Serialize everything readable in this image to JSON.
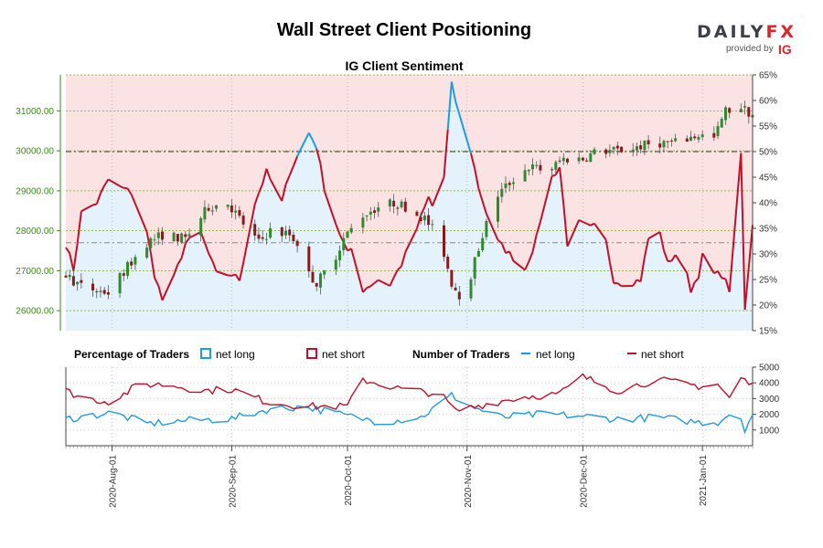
{
  "header": {
    "title": "Wall Street Client Positioning",
    "subtitle": "IG Client Sentiment",
    "logo_main": "DAILY",
    "logo_fx": "FX",
    "logo_provided": "provided by",
    "logo_ig": "IG"
  },
  "legend": {
    "pct_title": "Percentage of Traders",
    "pct_long": "net long",
    "pct_short": "net short",
    "num_title": "Number of Traders",
    "num_long": "net long",
    "num_short": "net short"
  },
  "colors": {
    "long": "#1f9be0",
    "short": "#c40f2a",
    "bull_candle": "#2e8b2e",
    "bear_candle": "#8b1a1a",
    "long_fill": "#e3f2fb",
    "short_fill": "#fbe3e3",
    "price_axis": "#3a8a1a",
    "grid": "#7aa33a"
  },
  "chart_data": [
    {
      "type": "candlestick",
      "title": "IG Client Sentiment",
      "series_name": "Wall Street",
      "price_axis": {
        "ylim": [
          25500,
          31900
        ],
        "ticks": [
          26000,
          27000,
          28000,
          29000,
          30000,
          31000
        ]
      },
      "percent_axis": {
        "ylim": [
          15,
          65
        ],
        "ticks": [
          15,
          20,
          25,
          30,
          35,
          40,
          45,
          50,
          55,
          60,
          65
        ]
      },
      "x_ticks": [
        "2020-Aug-01",
        "2020-Sep-01",
        "2020-Oct-01",
        "2020-Nov-01",
        "2020-Dec-01",
        "2021-Jan-01"
      ],
      "x_range": [
        "2020-Jul-20",
        "2021-Jan-14"
      ],
      "reference_line_percent": 50,
      "reference_line_price": 27700,
      "close_anchors": [
        [
          "2020-Jul-20",
          26900
        ],
        [
          "2020-Jul-24",
          26600
        ],
        [
          "2020-Jul-28",
          26500
        ],
        [
          "2020-Jul-31",
          26450
        ],
        [
          "2020-Aug-05",
          27100
        ],
        [
          "2020-Aug-10",
          27700
        ],
        [
          "2020-Aug-14",
          27900
        ],
        [
          "2020-Aug-20",
          27800
        ],
        [
          "2020-Aug-26",
          28600
        ],
        [
          "2020-Aug-31",
          28700
        ],
        [
          "2020-Sep-03",
          28300
        ],
        [
          "2020-Sep-08",
          27700
        ],
        [
          "2020-Sep-11",
          28000
        ],
        [
          "2020-Sep-16",
          27900
        ],
        [
          "2020-Sep-19",
          27600
        ],
        [
          "2020-Sep-21",
          26900
        ],
        [
          "2020-Sep-23",
          26700
        ],
        [
          "2020-Sep-27",
          27200
        ],
        [
          "2020-Sep-30",
          27800
        ],
        [
          "2020-Oct-05",
          28400
        ],
        [
          "2020-Oct-09",
          28600
        ],
        [
          "2020-Oct-13",
          28700
        ],
        [
          "2020-Oct-16",
          28600
        ],
        [
          "2020-Oct-21",
          28300
        ],
        [
          "2020-Oct-25",
          27800
        ],
        [
          "2020-Oct-28",
          26700
        ],
        [
          "2020-Oct-30",
          26400
        ],
        [
          "2020-Nov-02",
          26900
        ],
        [
          "2020-Nov-05",
          27900
        ],
        [
          "2020-Nov-09",
          28900
        ],
        [
          "2020-Nov-13",
          29300
        ],
        [
          "2020-Nov-17",
          29600
        ],
        [
          "2020-Nov-22",
          29500
        ],
        [
          "2020-Nov-26",
          29800
        ],
        [
          "2020-Dec-01",
          29800
        ],
        [
          "2020-Dec-05",
          30000
        ],
        [
          "2020-Dec-10",
          30000
        ],
        [
          "2020-Dec-15",
          30100
        ],
        [
          "2020-Dec-20",
          30200
        ],
        [
          "2020-Dec-25",
          30200
        ],
        [
          "2020-Dec-31",
          30400
        ],
        [
          "2021-Jan-04",
          30300
        ],
        [
          "2021-Jan-07",
          31000
        ],
        [
          "2021-Jan-11",
          31100
        ],
        [
          "2021-Jan-14",
          30900
        ]
      ],
      "net_long_pct_anchors": [
        [
          "2020-Jul-20",
          32
        ],
        [
          "2020-Jul-22",
          27
        ],
        [
          "2020-Jul-24",
          38
        ],
        [
          "2020-Jul-26",
          39
        ],
        [
          "2020-Jul-28",
          40
        ],
        [
          "2020-Aug-01",
          46
        ],
        [
          "2020-Aug-03",
          43
        ],
        [
          "2020-Aug-06",
          42
        ],
        [
          "2020-Aug-10",
          34
        ],
        [
          "2020-Aug-12",
          26
        ],
        [
          "2020-Aug-14",
          21
        ],
        [
          "2020-Aug-16",
          23
        ],
        [
          "2020-Aug-20",
          32
        ],
        [
          "2020-Aug-24",
          34
        ],
        [
          "2020-Aug-28",
          26
        ],
        [
          "2020-Sep-01",
          26
        ],
        [
          "2020-Sep-03",
          25
        ],
        [
          "2020-Sep-07",
          40
        ],
        [
          "2020-Sep-10",
          46
        ],
        [
          "2020-Sep-14",
          40
        ],
        [
          "2020-Sep-16",
          46
        ],
        [
          "2020-Sep-18",
          49
        ],
        [
          "2020-Sep-20",
          55
        ],
        [
          "2020-Sep-23",
          51
        ],
        [
          "2020-Sep-26",
          39
        ],
        [
          "2020-Sep-28",
          36
        ],
        [
          "2020-Oct-01",
          30
        ],
        [
          "2020-Oct-03",
          32
        ],
        [
          "2020-Oct-05",
          23
        ],
        [
          "2020-Oct-07",
          24
        ],
        [
          "2020-Oct-09",
          25
        ],
        [
          "2020-Oct-12",
          24
        ],
        [
          "2020-Oct-15",
          28
        ],
        [
          "2020-Oct-19",
          35
        ],
        [
          "2020-Oct-22",
          41
        ],
        [
          "2020-Oct-25",
          36
        ],
        [
          "2020-Oct-28",
          63
        ],
        [
          "2020-Oct-31",
          54
        ],
        [
          "2020-Nov-02",
          50
        ],
        [
          "2020-Nov-04",
          43
        ],
        [
          "2020-Nov-06",
          38
        ],
        [
          "2020-Nov-08",
          33
        ],
        [
          "2020-Nov-12",
          30
        ],
        [
          "2020-Nov-16",
          27
        ],
        [
          "2020-Nov-19",
          33
        ],
        [
          "2020-Nov-22",
          44
        ],
        [
          "2020-Nov-25",
          47
        ],
        [
          "2020-Nov-27",
          32
        ],
        [
          "2020-Nov-30",
          36
        ],
        [
          "2020-Dec-03",
          35
        ],
        [
          "2020-Dec-06",
          36
        ],
        [
          "2020-Dec-09",
          25
        ],
        [
          "2020-Dec-12",
          24
        ],
        [
          "2020-Dec-16",
          25
        ],
        [
          "2020-Dec-18",
          33
        ],
        [
          "2020-Dec-20",
          37
        ],
        [
          "2020-Dec-23",
          28
        ],
        [
          "2020-Dec-26",
          31
        ],
        [
          "2020-Dec-29",
          23
        ],
        [
          "2020-Dec-31",
          26
        ],
        [
          "2021-Jan-02",
          33
        ],
        [
          "2021-Jan-04",
          26
        ],
        [
          "2021-Jan-06",
          26
        ],
        [
          "2021-Jan-08",
          23
        ],
        [
          "2021-Jan-10",
          33
        ],
        [
          "2021-Jan-11",
          49
        ],
        [
          "2021-Jan-12",
          19
        ],
        [
          "2021-Jan-13",
          27
        ],
        [
          "2021-Jan-14",
          36
        ]
      ],
      "net_short_pct_note": "net short % = 100 - net long %"
    },
    {
      "type": "line",
      "title": "Number of Traders",
      "ylim": [
        0,
        5000
      ],
      "y_ticks": [
        1000,
        2000,
        3000,
        4000,
        5000
      ],
      "series": [
        {
          "name": "net long",
          "anchors": [
            [
              "2020-Jul-20",
              1700
            ],
            [
              "2020-Aug-01",
              2100
            ],
            [
              "2020-Aug-10",
              1400
            ],
            [
              "2020-Aug-20",
              1600
            ],
            [
              "2020-Sep-01",
              1700
            ],
            [
              "2020-Sep-10",
              2300
            ],
            [
              "2020-Sep-20",
              2500
            ],
            [
              "2020-Oct-01",
              1900
            ],
            [
              "2020-Oct-10",
              1500
            ],
            [
              "2020-Oct-20",
              1800
            ],
            [
              "2020-Oct-28",
              3200
            ],
            [
              "2020-Nov-02",
              2500
            ],
            [
              "2020-Nov-10",
              1800
            ],
            [
              "2020-Nov-20",
              2000
            ],
            [
              "2020-Nov-30",
              1900
            ],
            [
              "2020-Dec-10",
              1700
            ],
            [
              "2020-Dec-20",
              1800
            ],
            [
              "2020-Dec-31",
              1500
            ],
            [
              "2021-Jan-05",
              1500
            ],
            [
              "2021-Jan-10",
              2400
            ],
            [
              "2021-Jan-12",
              1100
            ],
            [
              "2021-Jan-14",
              2000
            ]
          ]
        },
        {
          "name": "net short",
          "anchors": [
            [
              "2020-Jul-20",
              3500
            ],
            [
              "2020-Jul-25",
              3000
            ],
            [
              "2020-Aug-01",
              2800
            ],
            [
              "2020-Aug-08",
              3900
            ],
            [
              "2020-Aug-15",
              3900
            ],
            [
              "2020-Aug-25",
              3500
            ],
            [
              "2020-Sep-01",
              3600
            ],
            [
              "2020-Sep-10",
              2800
            ],
            [
              "2020-Sep-20",
              2500
            ],
            [
              "2020-Oct-01",
              2500
            ],
            [
              "2020-Oct-05",
              4200
            ],
            [
              "2020-Oct-15",
              3600
            ],
            [
              "2020-Oct-25",
              3300
            ],
            [
              "2020-Oct-29",
              2200
            ],
            [
              "2020-Nov-05",
              2600
            ],
            [
              "2020-Nov-15",
              3100
            ],
            [
              "2020-Nov-25",
              3300
            ],
            [
              "2020-Dec-01",
              4400
            ],
            [
              "2020-Dec-10",
              3500
            ],
            [
              "2020-Dec-20",
              4200
            ],
            [
              "2020-Dec-31",
              3800
            ],
            [
              "2021-Jan-05",
              3900
            ],
            [
              "2021-Jan-08",
              3000
            ],
            [
              "2021-Jan-10",
              4500
            ],
            [
              "2021-Jan-14",
              3800
            ]
          ]
        }
      ]
    }
  ]
}
